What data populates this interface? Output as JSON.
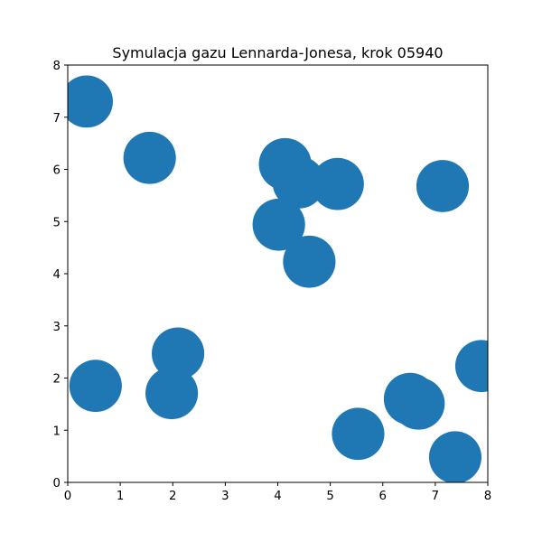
{
  "chart_data": {
    "type": "scatter",
    "title": "Symulacja gazu Lennarda-Jonesa, krok 05940",
    "xlabel": "",
    "ylabel": "",
    "xlim": [
      0,
      8
    ],
    "ylim": [
      0,
      8
    ],
    "x_ticks": [
      "0",
      "1",
      "2",
      "3",
      "4",
      "5",
      "6",
      "7",
      "8"
    ],
    "y_ticks": [
      "0",
      "1",
      "2",
      "3",
      "4",
      "5",
      "6",
      "7",
      "8"
    ],
    "grid": false,
    "aspect": "equal",
    "marker_radius": 0.5,
    "marker_color": "#1f77b4",
    "points": [
      {
        "x": 0.36,
        "y": 7.3
      },
      {
        "x": 1.56,
        "y": 6.22
      },
      {
        "x": 4.14,
        "y": 6.1
      },
      {
        "x": 4.4,
        "y": 5.75
      },
      {
        "x": 5.14,
        "y": 5.72
      },
      {
        "x": 7.14,
        "y": 5.68
      },
      {
        "x": 4.02,
        "y": 4.94
      },
      {
        "x": 4.6,
        "y": 4.23
      },
      {
        "x": 2.1,
        "y": 2.47
      },
      {
        "x": 7.88,
        "y": 2.23
      },
      {
        "x": 0.53,
        "y": 1.85
      },
      {
        "x": 1.98,
        "y": 1.71
      },
      {
        "x": 6.52,
        "y": 1.6
      },
      {
        "x": 6.68,
        "y": 1.51
      },
      {
        "x": 5.53,
        "y": 0.93
      },
      {
        "x": 7.38,
        "y": 0.48
      }
    ]
  }
}
